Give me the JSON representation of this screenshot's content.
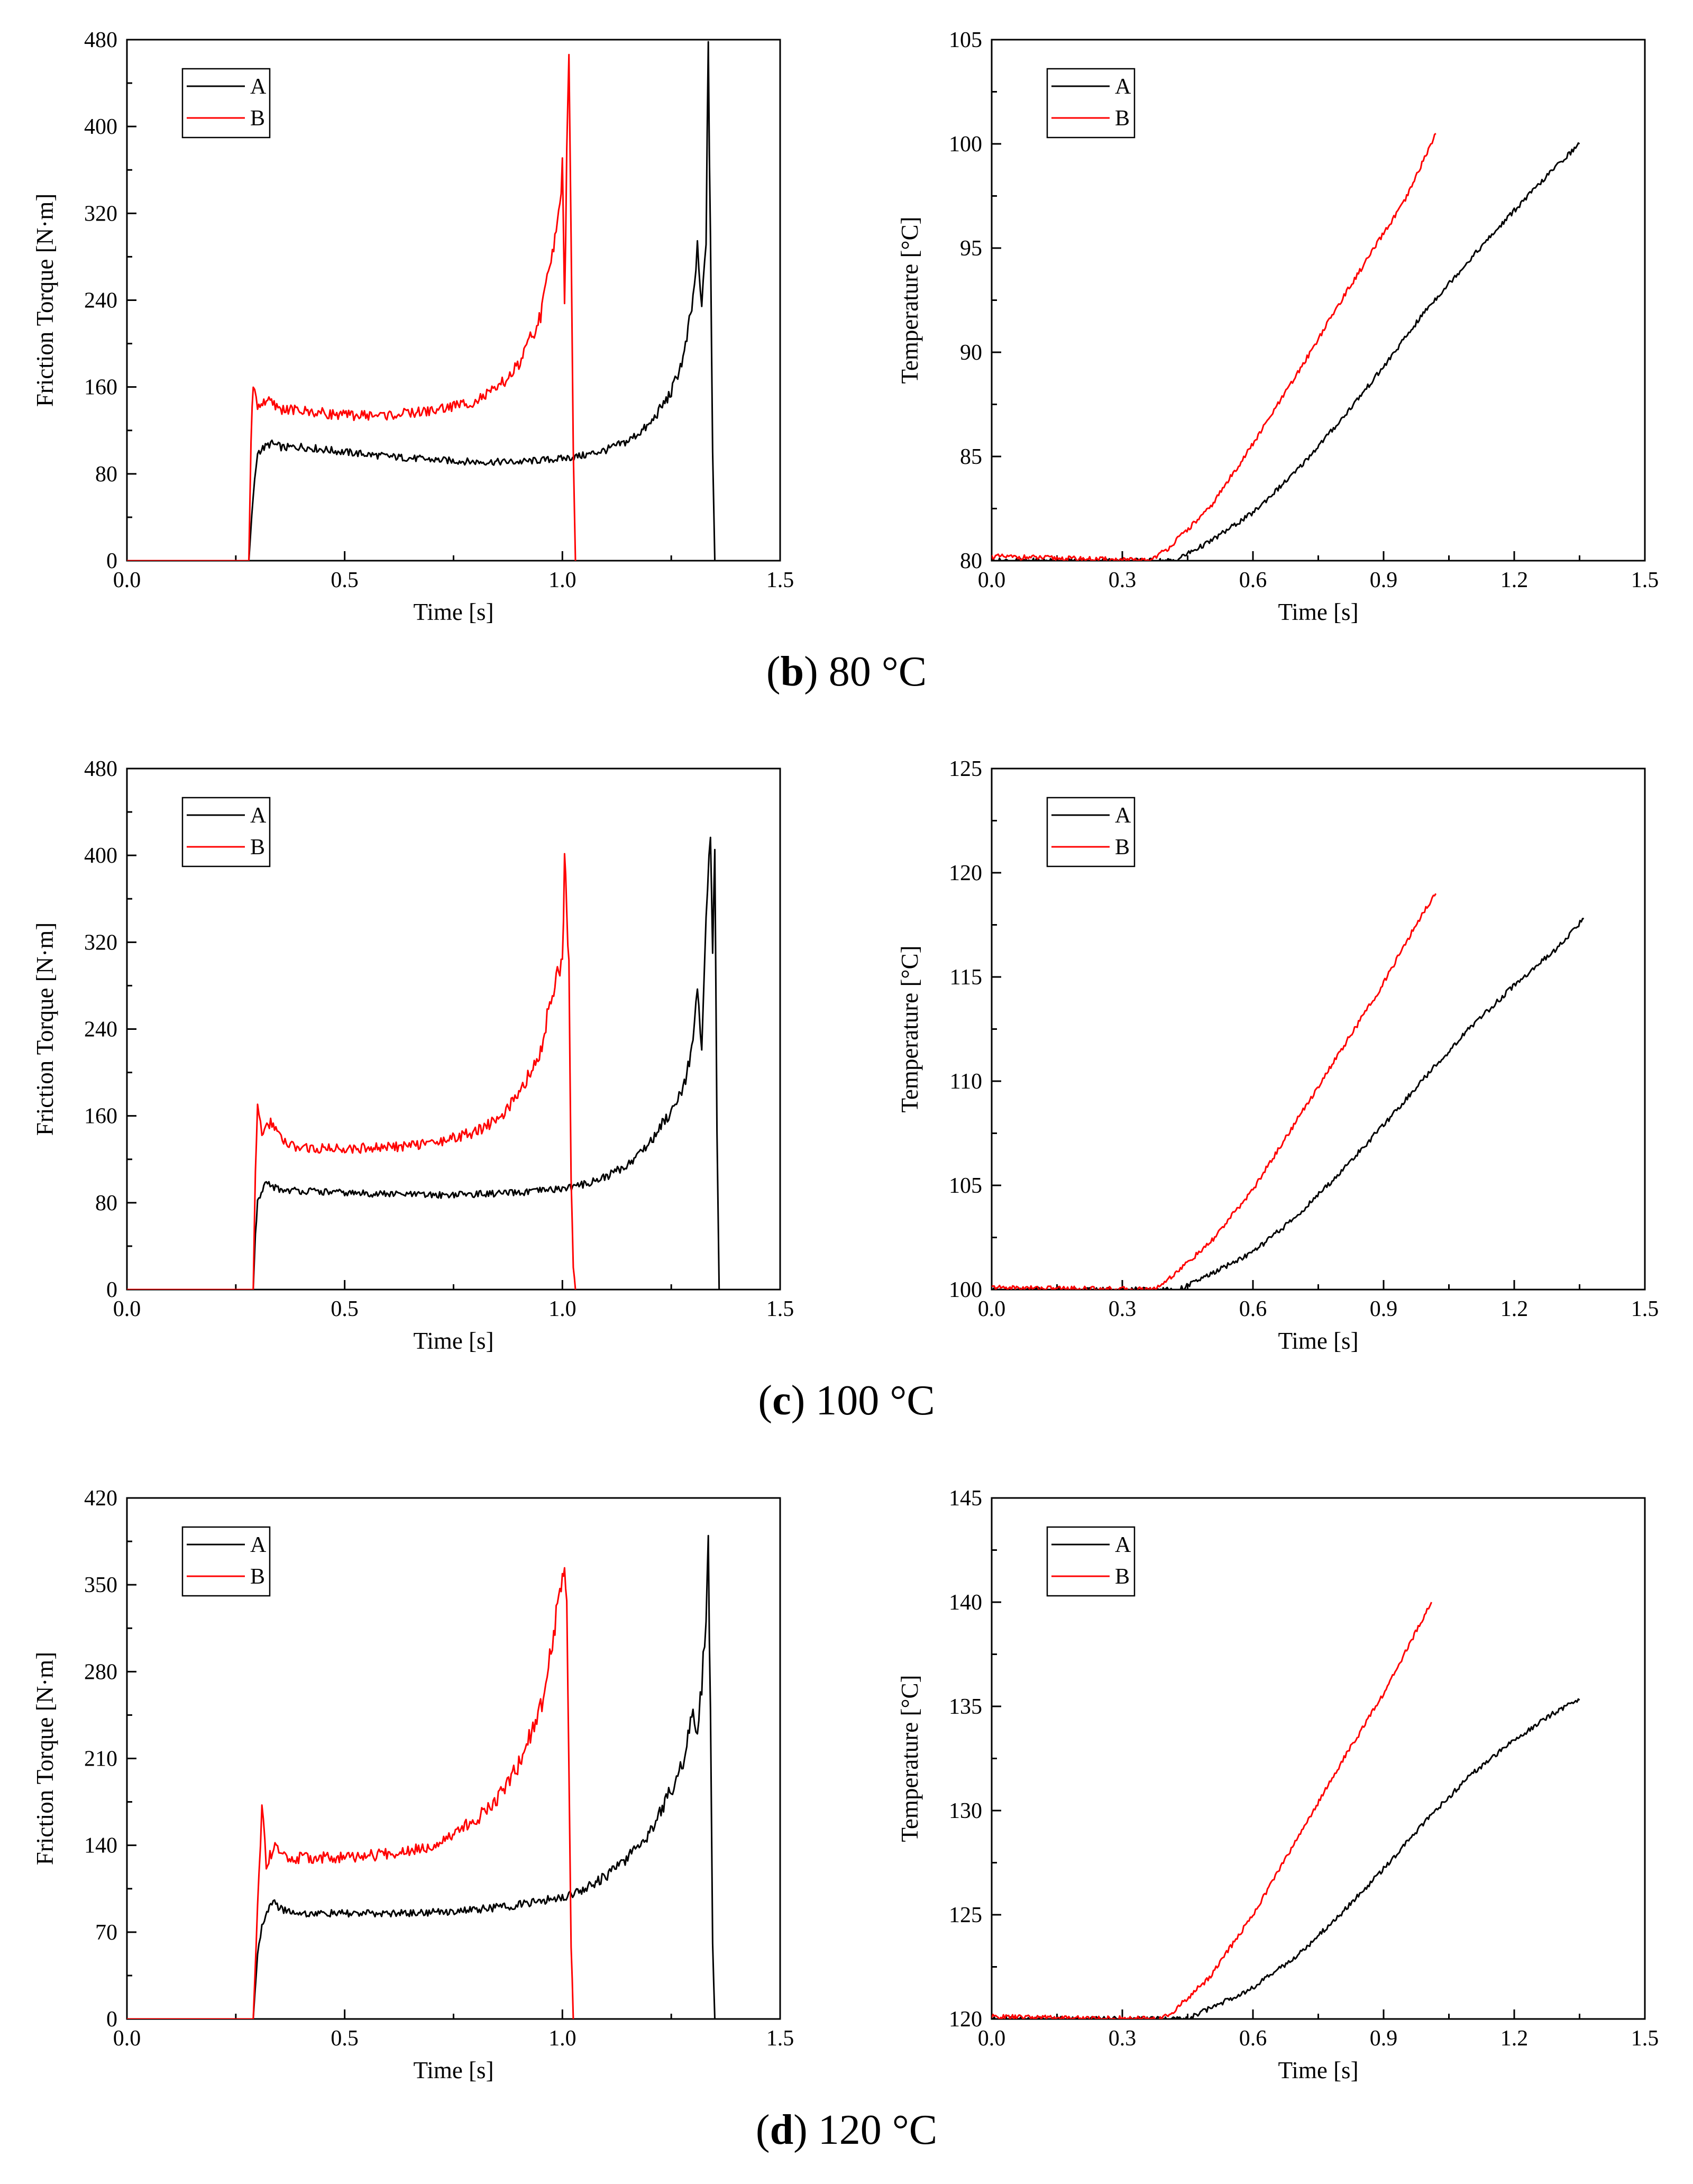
{
  "colors": {
    "A": "#000000",
    "B": "#ff0000",
    "axis": "#000000",
    "background": "#ffffff"
  },
  "rows": [
    {
      "caption": {
        "letter": "b",
        "rest": " 80 °C"
      },
      "torque": {
        "chart_data": {
          "type": "line",
          "title": "",
          "xlabel": "Time [s]",
          "ylabel": "Friction Torque [N·m]",
          "xlim": [
            0,
            1.5
          ],
          "ylim": [
            0,
            480
          ],
          "xticks": [
            0.0,
            0.5,
            1.0,
            1.5
          ],
          "xtick_labels": [
            "0.0",
            "0.5",
            "1.0",
            "1.5"
          ],
          "yticks": [
            0,
            80,
            160,
            240,
            320,
            400,
            480
          ],
          "ytick_labels": [
            "0",
            "80",
            "160",
            "240",
            "320",
            "400",
            "480"
          ],
          "legend": [
            "A",
            "B"
          ],
          "legend_position": "top-left",
          "series": [
            {
              "name": "A",
              "x": [
                0,
                0.28,
                0.29,
                0.3,
                0.33,
                0.36,
                0.4,
                0.5,
                0.6,
                0.7,
                0.8,
                0.9,
                1.0,
                1.05,
                1.1,
                1.15,
                1.2,
                1.25,
                1.28,
                1.3,
                1.31,
                1.32,
                1.33,
                1.335,
                1.34,
                1.345,
                1.35
              ],
              "y": [
                0,
                0,
                60,
                100,
                108,
                104,
                105,
                100,
                96,
                93,
                91,
                91,
                94,
                97,
                102,
                110,
                125,
                155,
                190,
                240,
                285,
                230,
                300,
                465,
                300,
                100,
                0
              ]
            },
            {
              "name": "B",
              "x": [
                0,
                0.28,
                0.285,
                0.29,
                0.3,
                0.32,
                0.35,
                0.4,
                0.5,
                0.6,
                0.7,
                0.8,
                0.85,
                0.9,
                0.95,
                0.98,
                1.0,
                1.005,
                1.01,
                1.015,
                1.02,
                1.025,
                1.03
              ],
              "y": [
                0,
                0,
                110,
                165,
                142,
                148,
                140,
                138,
                134,
                134,
                138,
                147,
                158,
                180,
                225,
                290,
                360,
                240,
                370,
                455,
                300,
                100,
                0
              ]
            }
          ]
        }
      },
      "temperature": {
        "chart_data": {
          "type": "line",
          "title": "",
          "xlabel": "Time [s]",
          "ylabel": "Temperature [°C]",
          "xlim": [
            0,
            1.5
          ],
          "ylim": [
            80,
            105
          ],
          "xticks": [
            0.0,
            0.3,
            0.6,
            0.9,
            1.2,
            1.5
          ],
          "xtick_labels": [
            "0.0",
            "0.3",
            "0.6",
            "0.9",
            "1.2",
            "1.5"
          ],
          "yticks": [
            80,
            85,
            90,
            95,
            100,
            105
          ],
          "ytick_labels": [
            "80",
            "85",
            "90",
            "95",
            "100",
            "105"
          ],
          "legend": [
            "A",
            "B"
          ],
          "legend_position": "top-left",
          "series": [
            {
              "name": "A",
              "x": [
                0,
                0.42,
                0.5,
                0.6,
                0.7,
                0.8,
                0.9,
                1.0,
                1.1,
                1.2,
                1.3,
                1.35
              ],
              "y": [
                80,
                80,
                80.9,
                82.3,
                84.3,
                86.7,
                89.3,
                92.1,
                94.5,
                96.8,
                99.0,
                100
              ]
            },
            {
              "name": "B",
              "x": [
                0,
                0.36,
                0.4,
                0.5,
                0.6,
                0.7,
                0.8,
                0.9,
                0.95,
                1.0,
                1.02
              ],
              "y": [
                80.2,
                80,
                80.5,
                82.5,
                85.6,
                88.9,
                92.4,
                95.7,
                97.3,
                99.6,
                100.5
              ]
            }
          ]
        }
      }
    },
    {
      "caption": {
        "letter": "c",
        "rest": " 100 °C"
      },
      "torque": {
        "chart_data": {
          "type": "line",
          "title": "",
          "xlabel": "Time [s]",
          "ylabel": "Friction Torque [N·m]",
          "xlim": [
            0,
            1.5
          ],
          "ylim": [
            0,
            480
          ],
          "xticks": [
            0.0,
            0.5,
            1.0,
            1.5
          ],
          "xtick_labels": [
            "0.0",
            "0.5",
            "1.0",
            "1.5"
          ],
          "yticks": [
            0,
            80,
            160,
            240,
            320,
            400,
            480
          ],
          "ytick_labels": [
            "0",
            "80",
            "160",
            "240",
            "320",
            "400",
            "480"
          ],
          "legend": [
            "A",
            "B"
          ],
          "legend_position": "top-left",
          "series": [
            {
              "name": "A",
              "x": [
                0,
                0.29,
                0.295,
                0.3,
                0.32,
                0.35,
                0.4,
                0.5,
                0.6,
                0.7,
                0.8,
                0.9,
                1.0,
                1.05,
                1.1,
                1.15,
                1.2,
                1.25,
                1.28,
                1.3,
                1.31,
                1.32,
                1.33,
                1.34,
                1.345,
                1.35,
                1.355,
                1.36
              ],
              "y": [
                0,
                0,
                50,
                80,
                98,
                92,
                91,
                89,
                88,
                87,
                88,
                89,
                93,
                97,
                104,
                115,
                135,
                165,
                190,
                230,
                270,
                220,
                340,
                420,
                300,
                400,
                150,
                0
              ]
            },
            {
              "name": "B",
              "x": [
                0,
                0.29,
                0.295,
                0.3,
                0.31,
                0.33,
                0.36,
                0.4,
                0.5,
                0.6,
                0.7,
                0.8,
                0.85,
                0.9,
                0.95,
                0.98,
                1.0,
                1.005,
                1.01,
                1.015,
                1.02,
                1.025,
                1.03
              ],
              "y": [
                0,
                0,
                110,
                170,
                140,
                155,
                135,
                130,
                130,
                131,
                135,
                145,
                157,
                178,
                220,
                280,
                300,
                395,
                350,
                300,
                100,
                20,
                0
              ]
            }
          ]
        }
      },
      "temperature": {
        "chart_data": {
          "type": "line",
          "title": "",
          "xlabel": "Time [s]",
          "ylabel": "Temperature [°C]",
          "xlim": [
            0,
            1.5
          ],
          "ylim": [
            100,
            125
          ],
          "xticks": [
            0.0,
            0.3,
            0.6,
            0.9,
            1.2,
            1.5
          ],
          "xtick_labels": [
            "0.0",
            "0.3",
            "0.6",
            "0.9",
            "1.2",
            "1.5"
          ],
          "yticks": [
            100,
            105,
            110,
            115,
            120,
            125
          ],
          "ytick_labels": [
            "100",
            "105",
            "110",
            "115",
            "120",
            "125"
          ],
          "legend": [
            "A",
            "B"
          ],
          "legend_position": "top-left",
          "series": [
            {
              "name": "A",
              "x": [
                0,
                0.43,
                0.5,
                0.6,
                0.7,
                0.8,
                0.9,
                1.0,
                1.1,
                1.2,
                1.3,
                1.36
              ],
              "y": [
                100,
                100,
                100.7,
                101.8,
                103.5,
                105.6,
                107.9,
                110.3,
                112.6,
                114.6,
                116.4,
                117.8
              ]
            },
            {
              "name": "B",
              "x": [
                0,
                0.37,
                0.4,
                0.5,
                0.6,
                0.7,
                0.8,
                0.9,
                0.95,
                1.0,
                1.02
              ],
              "y": [
                100.1,
                100,
                100.4,
                102.2,
                104.8,
                108.1,
                111.4,
                114.7,
                116.6,
                118.4,
                119
              ]
            }
          ]
        }
      }
    },
    {
      "caption": {
        "letter": "d",
        "rest": " 120 °C"
      },
      "torque": {
        "chart_data": {
          "type": "line",
          "title": "",
          "xlabel": "Time [s]",
          "ylabel": "Friction Torque [N·m]",
          "xlim": [
            0,
            1.5
          ],
          "ylim": [
            0,
            420
          ],
          "xticks": [
            0.0,
            0.5,
            1.0,
            1.5
          ],
          "xtick_labels": [
            "0.0",
            "0.5",
            "1.0",
            "1.5"
          ],
          "yticks": [
            0,
            70,
            140,
            210,
            280,
            350,
            420
          ],
          "ytick_labels": [
            "0",
            "70",
            "140",
            "210",
            "280",
            "350",
            "420"
          ],
          "legend": [
            "A",
            "B"
          ],
          "legend_position": "top-left",
          "series": [
            {
              "name": "A",
              "x": [
                0,
                0.29,
                0.3,
                0.31,
                0.33,
                0.36,
                0.4,
                0.5,
                0.6,
                0.7,
                0.8,
                0.9,
                1.0,
                1.05,
                1.1,
                1.15,
                1.2,
                1.25,
                1.28,
                1.3,
                1.31,
                1.32,
                1.33,
                1.335,
                1.34,
                1.345,
                1.35
              ],
              "y": [
                0,
                0,
                50,
                75,
                95,
                88,
                85,
                85,
                85,
                86,
                88,
                92,
                98,
                105,
                115,
                130,
                150,
                185,
                210,
                255,
                225,
                270,
                330,
                378,
                250,
                60,
                0
              ]
            },
            {
              "name": "B",
              "x": [
                0,
                0.29,
                0.3,
                0.31,
                0.32,
                0.34,
                0.37,
                0.4,
                0.5,
                0.6,
                0.7,
                0.8,
                0.85,
                0.9,
                0.95,
                0.98,
                1.0,
                1.005,
                1.01,
                1.015,
                1.02,
                1.025
              ],
              "y": [
                0,
                0,
                90,
                172,
                125,
                140,
                128,
                130,
                130,
                133,
                140,
                160,
                178,
                205,
                250,
                310,
                360,
                372,
                330,
                200,
                60,
                0
              ]
            }
          ]
        }
      },
      "temperature": {
        "chart_data": {
          "type": "line",
          "title": "",
          "xlabel": "Time [s]",
          "ylabel": "Temperature [°C]",
          "xlim": [
            0,
            1.5
          ],
          "ylim": [
            120,
            145
          ],
          "xticks": [
            0.0,
            0.3,
            0.6,
            0.9,
            1.2,
            1.5
          ],
          "xtick_labels": [
            "0.0",
            "0.3",
            "0.6",
            "0.9",
            "1.2",
            "1.5"
          ],
          "yticks": [
            120,
            125,
            130,
            135,
            140,
            145
          ],
          "ytick_labels": [
            "120",
            "125",
            "130",
            "135",
            "140",
            "145"
          ],
          "legend": [
            "A",
            "B"
          ],
          "legend_position": "top-left",
          "series": [
            {
              "name": "A",
              "x": [
                0,
                0.45,
                0.5,
                0.6,
                0.7,
                0.8,
                0.9,
                1.0,
                1.1,
                1.2,
                1.3,
                1.35
              ],
              "y": [
                120,
                120,
                120.5,
                121.5,
                123.0,
                125.0,
                127.2,
                129.6,
                131.7,
                133.4,
                134.8,
                135.3
              ]
            },
            {
              "name": "B",
              "x": [
                0,
                0.39,
                0.42,
                0.5,
                0.6,
                0.7,
                0.8,
                0.9,
                0.95,
                1.0,
                1.01
              ],
              "y": [
                120.1,
                120,
                120.4,
                122.0,
                125.0,
                128.6,
                132.2,
                135.6,
                137.6,
                139.6,
                140
              ]
            }
          ]
        }
      }
    }
  ]
}
